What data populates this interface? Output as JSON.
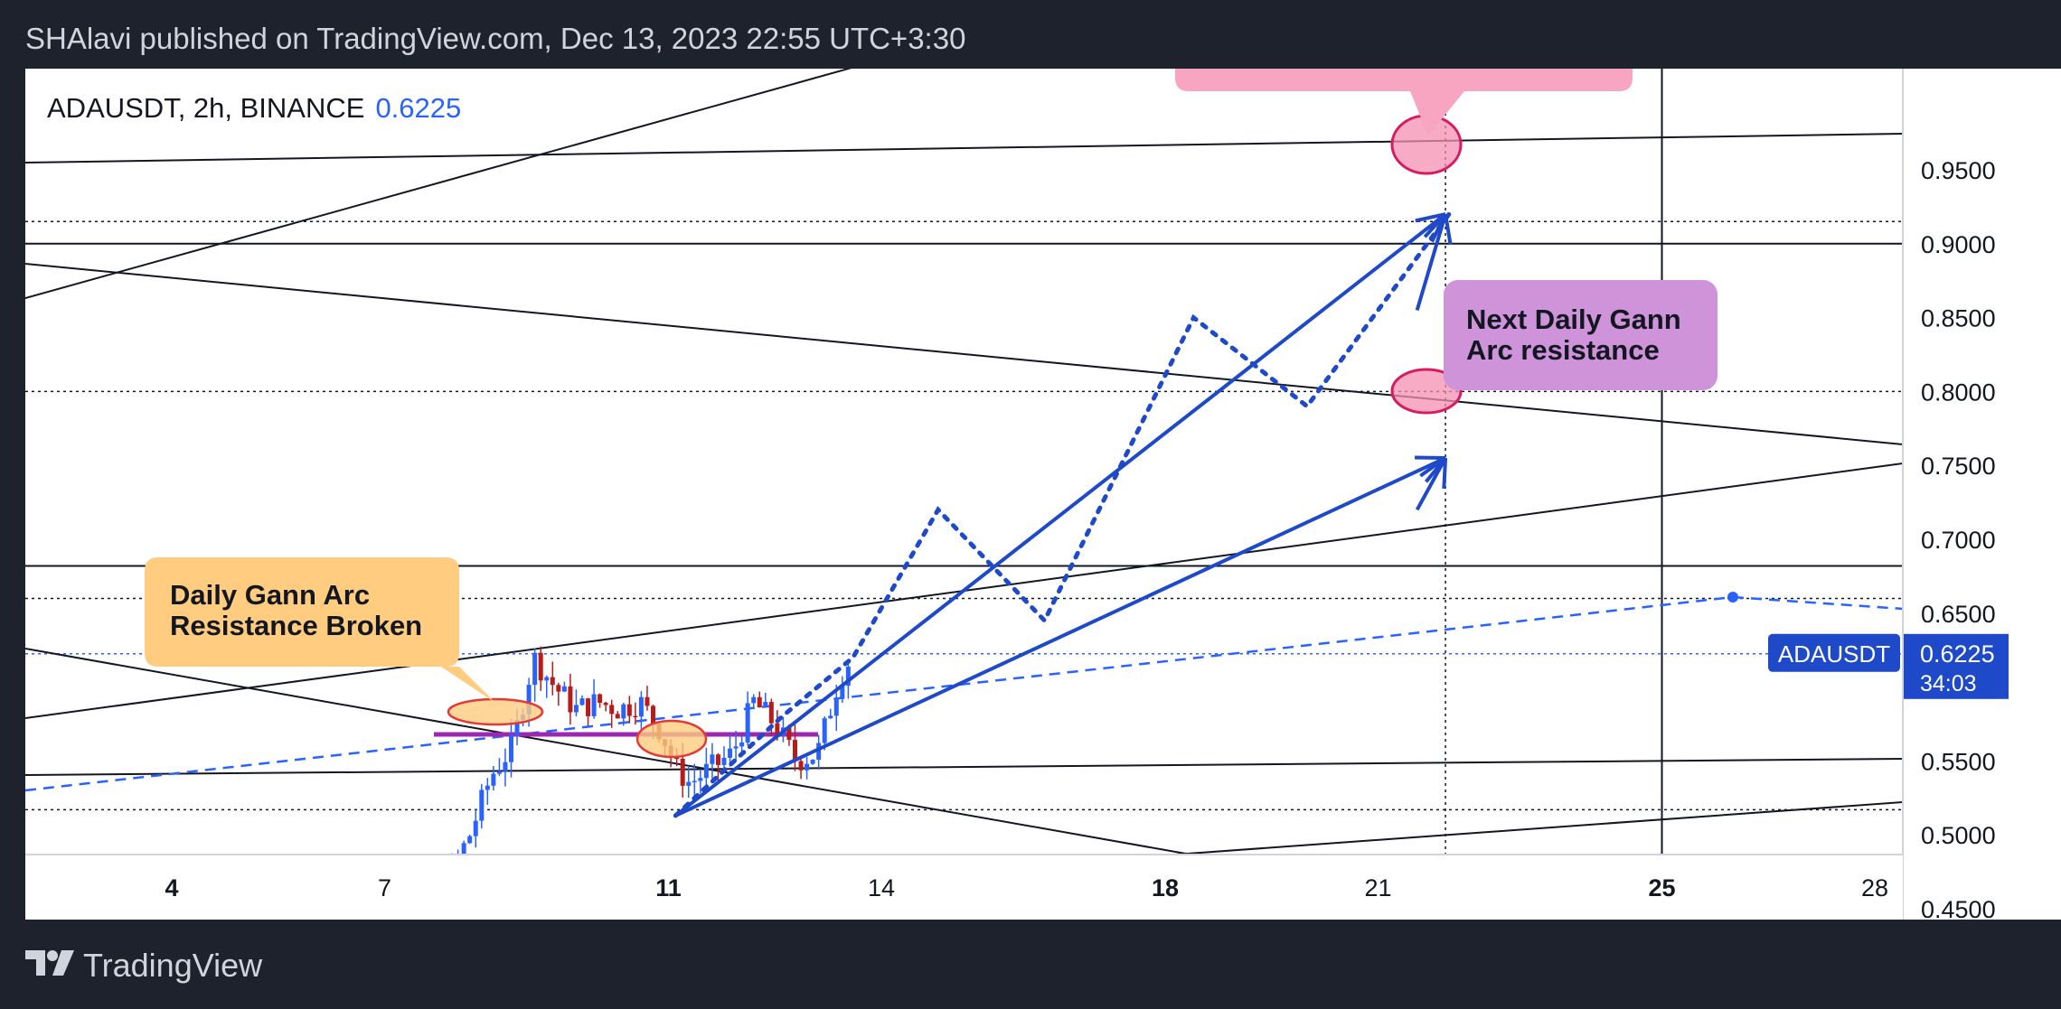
{
  "header": {
    "published": "SHAlavi published on TradingView.com, Dec 13, 2023 22:55 UTC+3:30"
  },
  "legend": {
    "symbol_line": "ADAUSDT, 2h, BINANCE",
    "price": "0.6225"
  },
  "annotations": {
    "broken": {
      "line1": "Daily Gann Arc",
      "line2": "Resistance Broken"
    },
    "next": {
      "line1": "Next Daily Gann",
      "line2": "Arc resistance"
    }
  },
  "price_tag": {
    "symbol": "ADAUSDT",
    "price": "0.6225",
    "countdown": "34:03"
  },
  "footer": {
    "brand": "TradingView"
  },
  "colors": {
    "background": "#1e222d",
    "up": "#2962ff",
    "down": "#b71c1c",
    "accent": "#2962ff",
    "orange_callout": "#ffcc80",
    "pink_callout": "#f8a5c2",
    "purple_callout": "#ce93d8",
    "magenta_line": "#9c27b0"
  },
  "chart_data": {
    "type": "candlestick",
    "title": "ADAUSDT, 2h, BINANCE",
    "y_ticks": [
      "0.9500",
      "0.9000",
      "0.8500",
      "0.8000",
      "0.7500",
      "0.7000",
      "0.6500",
      "0.6000",
      "0.5500",
      "0.5000",
      "0.4500"
    ],
    "y_tick_values": [
      0.95,
      0.9,
      0.85,
      0.8,
      0.75,
      0.7,
      0.65,
      0.6,
      0.55,
      0.5,
      0.45
    ],
    "x_ticks": [
      "4",
      "7",
      "11",
      "14",
      "18",
      "21",
      "25",
      "28"
    ],
    "x_tick_days": [
      4,
      7,
      11,
      14,
      18,
      21,
      25,
      28
    ],
    "x_tick_bold": [
      true,
      false,
      true,
      false,
      true,
      false,
      true,
      false
    ],
    "ylim": [
      0.438,
      0.97
    ],
    "xlim": [
      1.95,
      28.5
    ],
    "last_price": 0.6225,
    "price_series": {
      "day": [
        6.7,
        7.0,
        7.3,
        7.6,
        7.9,
        8.2,
        8.5,
        8.8,
        9.1,
        9.4,
        9.7,
        10.0,
        10.3,
        10.6,
        10.9,
        11.1,
        11.3,
        11.6,
        11.9,
        12.2,
        12.5,
        12.8,
        13.1,
        13.4,
        13.6
      ],
      "close": [
        0.447,
        0.452,
        0.447,
        0.452,
        0.47,
        0.5,
        0.54,
        0.56,
        0.62,
        0.6,
        0.585,
        0.59,
        0.585,
        0.59,
        0.57,
        0.545,
        0.535,
        0.545,
        0.555,
        0.59,
        0.575,
        0.55,
        0.555,
        0.605,
        0.6225
      ]
    },
    "projections": {
      "solid_upper": {
        "from": [
          11.1,
          0.513
        ],
        "to": [
          21.95,
          0.92
        ]
      },
      "solid_lower": {
        "from": [
          11.1,
          0.513
        ],
        "to": [
          21.95,
          0.755
        ]
      },
      "dotted_path": [
        [
          11.1,
          0.513
        ],
        [
          12.6,
          0.58
        ],
        [
          13.6,
          0.62
        ],
        [
          14.8,
          0.72
        ],
        [
          16.3,
          0.645
        ],
        [
          18.4,
          0.85
        ],
        [
          20.0,
          0.79
        ],
        [
          22.0,
          0.92
        ]
      ]
    }
  }
}
